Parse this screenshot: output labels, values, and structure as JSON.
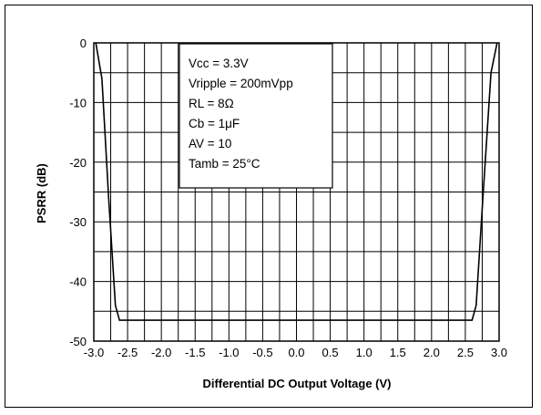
{
  "chart_data": {
    "type": "line",
    "xlabel": "Differential DC Output Voltage (V)",
    "ylabel": "PSRR (dB)",
    "xlim": [
      -3.0,
      3.0
    ],
    "ylim": [
      -50,
      0
    ],
    "x_ticks": [
      "-3.0",
      "-2.5",
      "-2.0",
      "-1.5",
      "-1.0",
      "-0.5",
      "0.0",
      "0.5",
      "1.0",
      "1.5",
      "2.0",
      "2.5",
      "3.0"
    ],
    "y_ticks": [
      "0",
      "-10",
      "-20",
      "-30",
      "-40",
      "-50"
    ],
    "grid": true,
    "series": [
      {
        "x": [
          -2.97,
          -2.88,
          -2.78,
          -2.68,
          -2.62,
          -1.5,
          0.0,
          1.5,
          2.6,
          2.66,
          2.76,
          2.88,
          2.97
        ],
        "y": [
          0,
          -6,
          -26,
          -44,
          -46.5,
          -46.5,
          -46.5,
          -46.5,
          -46.5,
          -44,
          -26,
          -5,
          0
        ]
      }
    ],
    "annotations": [
      "Vcc = 3.3V",
      "Vripple = 200mVpp",
      "RL = 8Ω",
      "Cb = 1μF",
      "AV = 10",
      "Tamb = 25°C"
    ]
  }
}
